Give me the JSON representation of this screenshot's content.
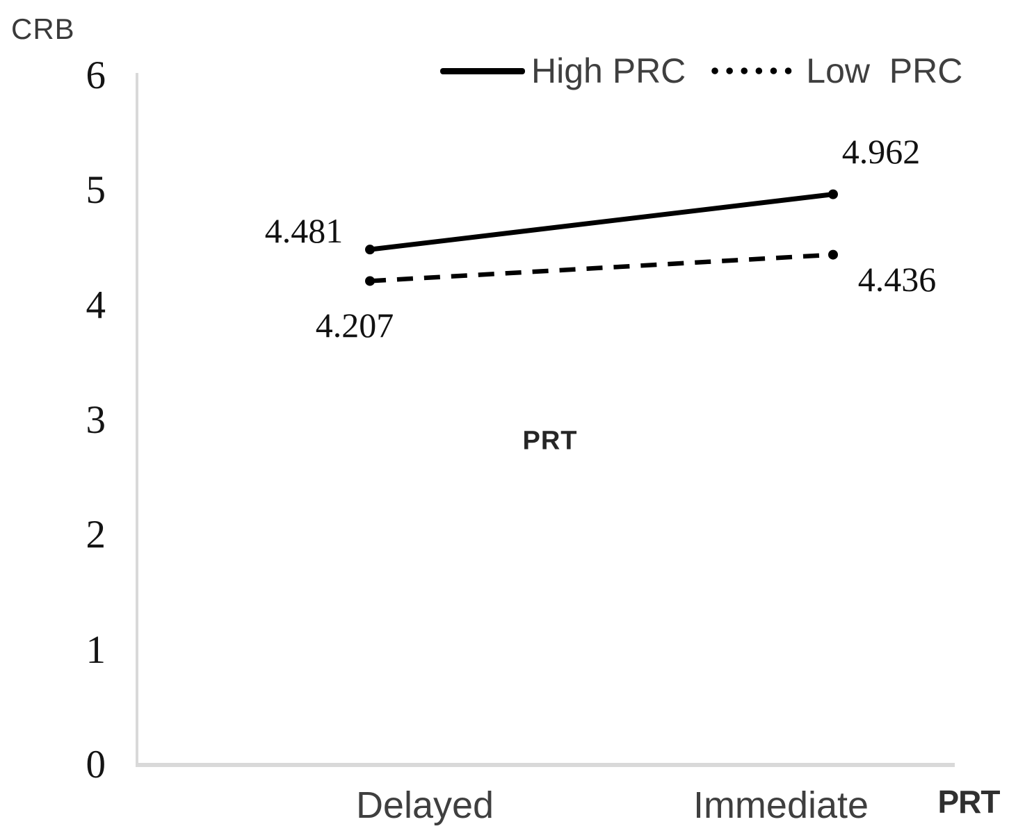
{
  "chart_data": {
    "type": "line",
    "ylabel": "CRB",
    "xlabel": "PRT",
    "inner_label": "PRT",
    "categories": [
      "Delayed",
      "Immediate"
    ],
    "series": [
      {
        "name": "High PRC",
        "style": "solid",
        "values": [
          4.481,
          4.962
        ],
        "labels": [
          "4.481",
          "4.962"
        ]
      },
      {
        "name": "Low  PRC",
        "style": "dotted",
        "values": [
          4.207,
          4.436
        ],
        "labels": [
          "4.207",
          "4.436"
        ]
      }
    ],
    "ylim": [
      0,
      6
    ],
    "yticks": [
      "6",
      "5",
      "4",
      "3",
      "2",
      "1",
      "0"
    ],
    "legend_position": "top",
    "grid": false,
    "colors": {
      "series": "#000000",
      "axis": "#d9d9d9",
      "label_text": "#3f3f3f",
      "tick_text": "#141414"
    }
  }
}
